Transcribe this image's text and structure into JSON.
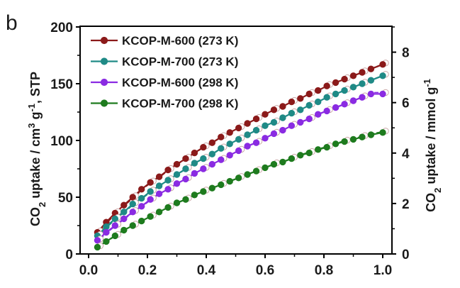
{
  "panel_label": "b",
  "colors": {
    "KCOP-M-600 (273 K)": "#8b1a1a",
    "KCOP-M-700 (273 K)": "#1f8a86",
    "KCOP-M-600 (298 K)": "#8a2be2",
    "KCOP-M-700 (298 K)": "#1e7b1e",
    "desorption_marker_fill": "#ffffff"
  },
  "chart_data": {
    "type": "line",
    "title": "",
    "xlabel": "",
    "ylabel": "CO2 uptake / cm3 g-1, STP",
    "ylabel_parts": {
      "a": "CO",
      "b": "2",
      "c": " uptake / cm",
      "d": "3",
      "e": " g",
      "f": "-1",
      "g": ", STP"
    },
    "y2label": "CO2 uptake / mmol g-1",
    "y2label_parts": {
      "a": "CO",
      "b": "2",
      "c": " uptake / mmol g",
      "d": "-1"
    },
    "xlim": [
      0.0,
      1.0
    ],
    "ylim": [
      0,
      200
    ],
    "y2lim": [
      0,
      9
    ],
    "xticks": [
      "0.0",
      "0.2",
      "0.4",
      "0.6",
      "0.8",
      "1.0"
    ],
    "yticks": [
      "0",
      "50",
      "100",
      "150",
      "200"
    ],
    "y2ticks": [
      "0",
      "2",
      "4",
      "6",
      "8"
    ],
    "legend_position": "top-left",
    "grid": false,
    "x": [
      0.03,
      0.06,
      0.09,
      0.12,
      0.15,
      0.18,
      0.21,
      0.24,
      0.27,
      0.3,
      0.33,
      0.36,
      0.39,
      0.42,
      0.45,
      0.48,
      0.51,
      0.54,
      0.57,
      0.6,
      0.63,
      0.66,
      0.69,
      0.72,
      0.75,
      0.78,
      0.81,
      0.84,
      0.87,
      0.9,
      0.93,
      0.96,
      1.0
    ],
    "series": [
      {
        "name": "KCOP-M-600 (273 K)",
        "values": [
          19,
          28,
          36,
          43,
          50,
          57,
          63,
          68,
          74,
          79,
          84,
          89,
          94,
          98,
          103,
          107,
          111,
          115,
          119,
          123,
          127,
          130,
          134,
          137,
          141,
          144,
          148,
          151,
          154,
          157,
          160,
          163,
          167
        ]
      },
      {
        "name": "KCOP-M-700 (273 K)",
        "values": [
          16,
          24,
          31,
          37,
          44,
          49,
          55,
          60,
          65,
          70,
          75,
          80,
          84,
          88,
          93,
          97,
          101,
          105,
          109,
          113,
          116,
          120,
          124,
          127,
          131,
          134,
          138,
          141,
          144,
          147,
          150,
          153,
          157
        ]
      },
      {
        "name": "KCOP-M-600 (298 K)",
        "values": [
          12,
          19,
          25,
          31,
          37,
          42,
          48,
          53,
          57,
          62,
          66,
          71,
          75,
          79,
          83,
          87,
          91,
          95,
          98,
          102,
          106,
          109,
          113,
          116,
          119,
          123,
          126,
          129,
          132,
          135,
          138,
          141,
          141
        ]
      },
      {
        "name": "KCOP-M-700 (298 K)",
        "values": [
          6,
          11,
          16,
          21,
          25,
          29,
          33,
          37,
          41,
          45,
          48,
          52,
          55,
          58,
          61,
          64,
          67,
          70,
          73,
          76,
          79,
          81,
          84,
          87,
          89,
          92,
          94,
          97,
          99,
          101,
          103,
          105,
          107
        ]
      }
    ]
  }
}
